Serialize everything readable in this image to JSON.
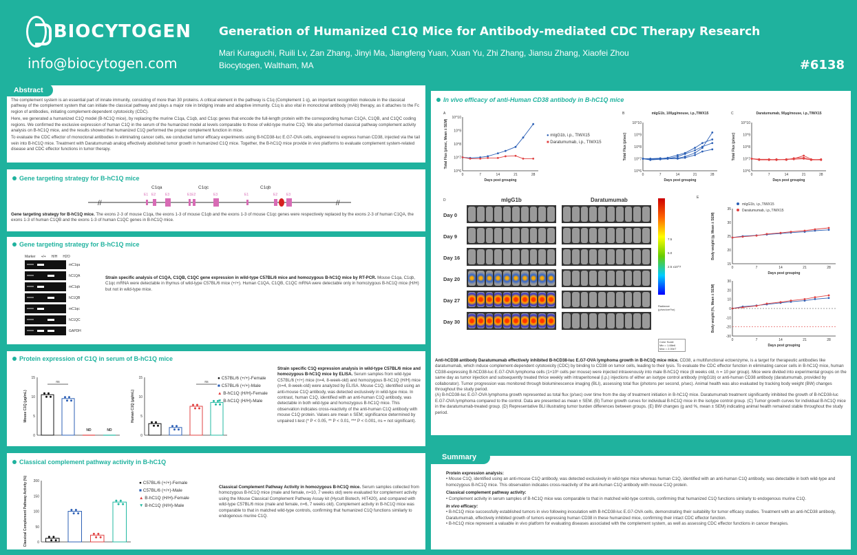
{
  "header": {
    "logo_text": "BIOCYTOGEN",
    "email": "info@biocytogen.com",
    "title": "Generation of Humanized C1Q Mice for Antibody-mediated CDC Therapy Research",
    "authors": "Mari Kuraguchi, Ruili Lv, Zan Zhang, Jinyi Ma, Jiangfeng Yuan, Xuan Yu, Zhi Zhang, Jiansu Zhang, Xiaofei Zhou",
    "affiliation": "Biocytogen, Waltham, MA",
    "poster_id": "#6138"
  },
  "abstract": {
    "heading": "Abstract",
    "p1": "The complement system is an essential part of innate immunity, consisting of more than 30 proteins. A critical element in the pathway is C1q (Complement 1 q), an important recognition molecule in the classical pathway of the complement system that can initiate the classical pathway and plays a major role in bridging innate and adaptive immunity. C1q is also vital in monoclonal antibody (mAb) therapy, as it attaches to the Fc region of antibodies, initiating complement-dependent cytotoxicity (CDC).",
    "p2": "Here, we generated a humanized C1Q model (B-hC1Q mice), by replacing the murine C1qa, C1qb, and C1qc genes that encode the full-length protein with the corresponding human C1QA, C1QB, and C1QC coding regions. We confirmed the exclusive expression of human C1Q in the serum of the humanized model at levels comparable to those of wild-type murine C1Q. We also performed classical pathway complement activity analysis on B-hC1Q mice, and the results showed that humanized C1Q performed the proper complement function in mice.",
    "p3": "To evaluate the CDC effector of monoclonal antibodies in eliminating cancer cells, we conducted tumor efficacy experiments using B-hCD38-luc E.G7-OVA cells, engineered to express human CD38, injected via the tail vein into B-hC1Q mice. Treatment with Daratumumab analog effectively abolished tumor growth in humanized C1Q mice. Together, the B-hC1Q mice provide in vivo platforms to evaluate complement system-related disease and CDC effector functions in tumor therapy."
  },
  "gene_strategy": {
    "heading": "Gene targeting strategy for B-hC1Q mice",
    "gene_labels": [
      "C1qa",
      "C1qc",
      "C1qb"
    ],
    "exon_labels": [
      "E1",
      "E2",
      "E3",
      "E1E2",
      "E3",
      "E1",
      "E2",
      "E3"
    ],
    "caption_bold": "Gene targeting strategy for B-hC1Q mice.",
    "caption": " The exons 2-3 of mouse C1qa, the exons 1-3 of mouse C1qb and the exons 1-3 of mouse C1qc genes were respectively replaced by the exons 2-3 of human C1QA, the exons 1-3 of human C1QB and the exons 1-3 of human C1QC genes in B-hC1Q mice."
  },
  "gene_expr": {
    "heading": "Gene targeting strategy for B-hC1Q mice",
    "gel_columns": [
      "Marker",
      "+/+",
      "H/H",
      "H2O"
    ],
    "gel_rows": [
      "mC1qa",
      "hC1QA",
      "mC1qb",
      "hC1QB",
      "mC1qc",
      "hC1QC",
      "GAPDH"
    ],
    "caption_bold": "Strain specific analysis of C1QA, C1QB, C1QC gene expression in wild-type C57BL/6 mice and homozygous B-hC1Q mice by RT-PCR.",
    "caption": " Mouse C1qa, C1qb, C1qc mRNA were detectable in thymus of wild-type C57BL/6 mice (+/+). Human C1QA, C1QB, C1QC mRNA were detectable only in homozygous B-hC1Q mice (H/H) but not in wild-type mice."
  },
  "protein": {
    "heading": "Protein expression of C1Q in serum of B-hC1Q mice",
    "ylabel1": "Mouse C1Q (μg/mL)",
    "ylabel2": "Human C1Q (μg/mL)",
    "yticks1": [
      "0",
      "5",
      "10",
      "15"
    ],
    "yticks2": [
      "0",
      "5",
      "10",
      "15"
    ],
    "ns": "ns",
    "nd": "ND",
    "legend": [
      "C57BL/6 (+/+)-Female",
      "C57BL/6 (+/+)-Male",
      "B-hC1Q (H/H)-Female",
      "B-hC1Q (H/H)-Male"
    ],
    "caption_bold": "Strain specific C1Q expression analysis in wild-type C57BL/6 mice and homozygous B-hC1Q mice by ELISA.",
    "caption": " Serum samples from wild-type C57BL/6 (+/+) mice (n=4, 8-week-old) and homozygous B-hC1Q (H/H) mice (n=4, 8-week-old) were analyzed by ELISA. Mouse C1Q, identified using an anti-mouse C1Q antibody, was detected exclusively in wild-type mice. In contrast, human C1Q, identified with an anti-human C1Q antibody, was detectable in both wild-type and homozygous B-hC1Q mice. This observation indicates cross-reactivity of the anti-human C1Q antibody with mouse C1Q protein. Values are mean ± SEM; significance determined by unpaired t-test (* P < 0.05, ** P < 0.01, *** P < 0.001, ns = not significant)."
  },
  "complement": {
    "heading": "Classical complement pathway activity in B-hC1Q",
    "ylabel": "Classical Complement Pathway Activity (%)",
    "yticks": [
      "0",
      "50",
      "100",
      "150",
      "200"
    ],
    "legend": [
      "C57BL/6 (+/+)-Female",
      "C57BL/6 (+/+)-Male",
      "B-hC1Q (H/H)-Female",
      "B-hC1Q (H/H)-Male"
    ],
    "caption_bold": "Classical Complement Pathway Activity in homozygous B-hC1Q mice.",
    "caption": " Serum samples collected from homozygous B-hC1Q mice (male and female, n=10, 7 weeks old) were evaluated for complement activity using the Mouse Classical Complement Pathway Assay kit (HycuIt Biotech, HIT420), and compared with wild-type C57BL/6 mice (male and female, n=6, 7 weeks old). Complement activity in B-hC1Q mice was comparable to that in matched wild-type controls, confirming that humanized C1Q functions similarly to endogenous murine C1Q."
  },
  "efficacy": {
    "heading": "In vivo efficacy of anti-Human CD38 antibody in B-hC1Q mice",
    "panel_letters": [
      "A",
      "B",
      "C",
      "D",
      "E"
    ],
    "ylabel_flux": "Total Flux (p/sec, Mean ± SEM)",
    "ylabel_flux_short": "Total Flux (p/sec)",
    "flux_ticks": [
      "10^6",
      "10^7",
      "10^8",
      "10^9",
      "10^10"
    ],
    "xlabel": "Days post grouping",
    "xticks": [
      "0",
      "7",
      "14",
      "21",
      "28"
    ],
    "legend_a": [
      "mIgG1b, i.p., TIWX15",
      "Daratumumab, i.p., TIWX15"
    ],
    "title_b": "mIgG1b, 100μg/mouse, i.p.,TIWX15",
    "title_c": "Daratumumab, 90μg/mouse, i.p.,TIWX15",
    "img_groups": [
      "mIgG1b",
      "Daratumumab"
    ],
    "days": [
      "Day 0",
      "Day 9",
      "Day 16",
      "Day 20",
      "Day 27",
      "Day 30"
    ],
    "colorbar_ticks": [
      "7.5",
      "5.0",
      "2.5 x10^7"
    ],
    "colorbar_label": "Radiance (p/sec/cm²/sr)",
    "color_scale": "Color Scale\nMin = 1.88e6\nMax = 2.00e7",
    "legend_e": [
      "mIgG1b, i.p.,TIWX15",
      "Daratumumab, i.p.,TIWX15"
    ],
    "ylabel_bw": "Body weight (g, Mean ± SEM)",
    "ylabel_bwc": "Body weight (%, Mean ± SEM)",
    "bw_ticks": [
      "15",
      "20",
      "25",
      "30",
      "35"
    ],
    "bwc_ticks": [
      "-30",
      "-20",
      "-10",
      "0",
      "10",
      "20",
      "30"
    ],
    "caption_bold": "Anti-hCD38 antibody Daratumumab effectively inhibited B-hCD38-luc E.G7-OVA lymphoma growth in B-hC1Q mice mice.",
    "caption": " CD38, a multifunctional ectoenzyme, is a target for therapeutic antibodies like daratumumab, which induce complement-dependent cytotoxicity (CDC) by binding to CD38 on tumor cells, leading to their lysis. To evaluate the CDC effector function in eliminating cancer cells in B-hC1Q mice, human CD38-expressing B-hCD38-luc E.G7-OVA lymphoma cells (1×10⁶ cells per mouse) were injected intravenously into male B-hC1Q mice (8 weeks old, n = 10 per group). Mice were divided into experimental groups on the same day as tumor injection and subsequently treated thrice weekly with intraperitoneal (i.p.) injections of either an isotype control antibody (mIgG1b) or anti-human CD38 antibody (daratumumab, provided by collaborator). Tumor progression was monitored through bioluminescence imaging (BLI), assessing total flux (photons per second, p/sec). Animal health was also evaluated by tracking body weight (BW) changes throughout the study period.",
    "caption2": "(A) B-hCD38-luc E.G7-OVA lymphoma growth represented as total flux (p/sec) over time from the day of treatment initiation in B-hC1Q mice. Daratumumab treatment significantly inhibited the growth of B-hCD38-luc E.G7-OVA lymphoma compared to the control. Data are presented as mean ± SEM. (B) Tumor growth curves for individual B-hC1Q mice in the isotype control group. (C) Tumor growth curves for individual B-hC1Q mice in the daratumumab-treated group. (D) Representative BLI illustrating tumor burden differences between groups. (E) BW changes (g and %, mean ± SEM) indicating animal health remained stable throughout the study period."
  },
  "summary": {
    "heading": "Summary",
    "h1": "Protein expression analysis:",
    "b1": "Mouse C1Q, identified using an anti-mouse C1Q antibody, was detected exclusively in wild-type mice whereas human C1Q, identified with an anti-human C1Q antibody, was detectable in both wild-type and homozygous B-hC1Q mice. This observation indicates cross-reactivity of the anti-human C1Q antibody with mouse C1Q protein.",
    "h2": "Classical complement pathway activity:",
    "b2": "Complement activity in serum samples of B-hC1Q mice was comparable to that in matched wild-type controls, confirming that humanized C1Q functions similarly to endogenous murine C1Q.",
    "h3": "In vivo efficacy:",
    "b3a": "B-hC1Q mice successfully established tumors in vivo following inoculation with B-hCD38-luc E.G7-OVA cells, demonstrating their suitability for tumor efficacy studies. Treatment with an anti-hCD38 antibody, Daratumumab, effectively inhibited growth of tumors expressing human CD38 in these humanized mice, confirming their intact CDC effector function.",
    "b3b": "B-hC1Q mice represent a valuable in vivo platform for evaluating diseases associated with the complement system, as well as assessing CDC effector functions in cancer therapies."
  },
  "chart_data": [
    {
      "type": "bar",
      "title": "",
      "ylabel": "Mouse C1Q (μg/mL)",
      "categories": [
        "C57BL/6 (+/+)-Female",
        "C57BL/6 (+/+)-Male",
        "B-hC1Q (H/H)-Female",
        "B-hC1Q (H/H)-Male"
      ],
      "values": [
        10.5,
        9.5,
        0,
        0
      ],
      "ylim": [
        0,
        15
      ]
    },
    {
      "type": "bar",
      "title": "",
      "ylabel": "Human C1Q (μg/mL)",
      "categories": [
        "C57BL/6 (+/+)-Female",
        "C57BL/6 (+/+)-Male",
        "B-hC1Q (H/H)-Female",
        "B-hC1Q (H/H)-Male"
      ],
      "values": [
        3,
        2,
        7.5,
        8.5
      ],
      "ylim": [
        0,
        15
      ]
    },
    {
      "type": "bar",
      "title": "",
      "ylabel": "Classical Complement Pathway Activity (%)",
      "categories": [
        "C57BL/6 (+/+)-Female",
        "C57BL/6 (+/+)-Male",
        "B-hC1Q (H/H)-Female",
        "B-hC1Q (H/H)-Male"
      ],
      "values": [
        12,
        100,
        22,
        130
      ],
      "ylim": [
        0,
        200
      ]
    },
    {
      "type": "line",
      "xlabel": "Days post grouping",
      "ylabel": "Total Flux (p/sec, Mean ± SEM)",
      "x": [
        0,
        3,
        7,
        10,
        14,
        17,
        21,
        24,
        28
      ],
      "series": [
        {
          "name": "mIgG1b, i.p., TIWX15",
          "values": [
            10000000.0,
            9000000.0,
            10000000.0,
            12000000.0,
            20000000.0,
            30000000.0,
            60000000.0,
            300000000.0,
            3000000000.0
          ]
        },
        {
          "name": "Daratumumab, i.p., TIWX15",
          "values": [
            10000000.0,
            8000000.0,
            8000000.0,
            9000000.0,
            9000000.0,
            12000000.0,
            13000000.0,
            8000000.0,
            8000000.0
          ]
        }
      ]
    },
    {
      "type": "line",
      "xlabel": "Days post grouping",
      "ylabel": "Body weight (g, Mean ± SEM)",
      "x": [
        0,
        3,
        7,
        10,
        14,
        17,
        21,
        24,
        28
      ],
      "series": [
        {
          "name": "mIgG1b, i.p.,TIWX15",
          "values": [
            24.5,
            25,
            25.3,
            25.6,
            26,
            26.3,
            26.6,
            27,
            27.3
          ]
        },
        {
          "name": "Daratumumab, i.p.,TIWX15",
          "values": [
            24.5,
            24.8,
            25.2,
            25.8,
            26.2,
            26.6,
            27,
            27.5,
            28
          ]
        }
      ]
    }
  ]
}
